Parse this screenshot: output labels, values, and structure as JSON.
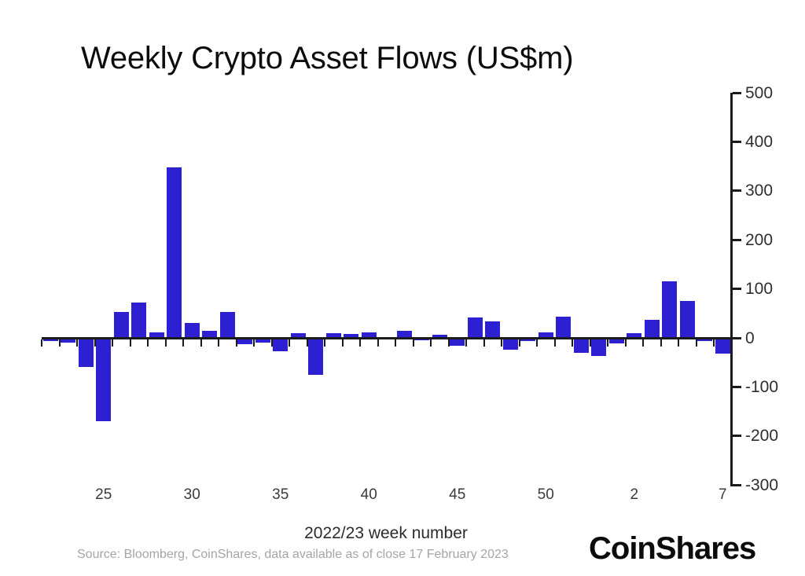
{
  "title": "Weekly Crypto Asset Flows (US$m)",
  "source_note": "Source: Bloomberg, CoinShares, data available as of close 17 February 2023",
  "brand": "CoinShares",
  "colors": {
    "bar": "#2c20d2",
    "axis": "#1b1b1b",
    "background": "#ffffff",
    "source_text": "#a5a5a5"
  },
  "chart_data": {
    "type": "bar",
    "title": "Weekly Crypto Asset Flows (US$m)",
    "xlabel": "2022/23 week number",
    "ylabel": "",
    "ylim": [
      -300,
      500
    ],
    "yticks": [
      500,
      400,
      300,
      200,
      100,
      0,
      -100,
      -200,
      -300
    ],
    "grid": false,
    "y_axis_side": "right",
    "legend": null,
    "categories": [
      "22",
      "23",
      "24",
      "25",
      "26",
      "27",
      "28",
      "29",
      "30",
      "31",
      "32",
      "33",
      "34",
      "35",
      "36",
      "37",
      "38",
      "39",
      "40",
      "41",
      "42",
      "43",
      "44",
      "45",
      "46",
      "47",
      "48",
      "49",
      "50",
      "51",
      "52",
      "53",
      "1",
      "2",
      "3",
      "4",
      "5",
      "6",
      "7"
    ],
    "values": [
      -6,
      -10,
      -60,
      -170,
      53,
      72,
      11,
      348,
      30,
      14,
      53,
      -13,
      -9,
      -27,
      10,
      -76,
      10,
      8,
      11,
      -4,
      14,
      -5,
      6,
      -16,
      42,
      34,
      -24,
      -6,
      11,
      43,
      -30,
      -37,
      -11,
      10,
      37,
      116,
      75,
      -6,
      -32
    ],
    "x_axis_labels": [
      "25",
      "30",
      "35",
      "40",
      "45",
      "50",
      "2",
      "7"
    ],
    "x_axis_label_indices": [
      3,
      8,
      13,
      18,
      23,
      28,
      33,
      38
    ]
  }
}
